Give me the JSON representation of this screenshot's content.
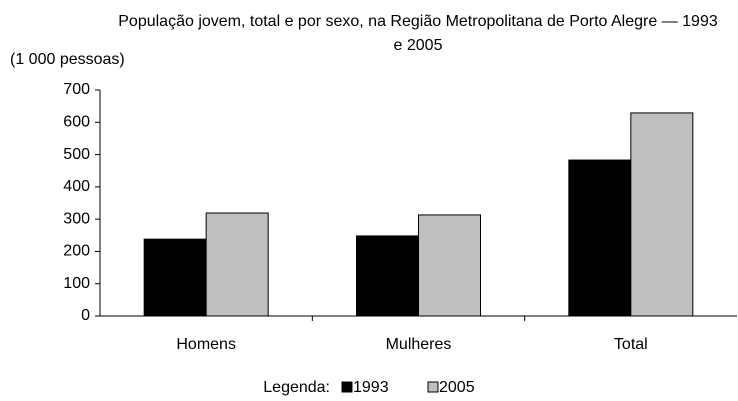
{
  "chart_data": {
    "type": "bar",
    "title": "População jovem, total e por sexo, na Região Metropolitana de Porto Alegre — 1993 e 2005",
    "y_label": "(1 000 pessoas)",
    "legend_title": "Legenda:",
    "categories": [
      "Homens",
      "Mulheres",
      "Total"
    ],
    "series": [
      {
        "name": "1993",
        "color": "#000000",
        "values": [
          238,
          248,
          483
        ]
      },
      {
        "name": "2005",
        "color": "#c0c0c0",
        "values": [
          319,
          313,
          629
        ]
      }
    ],
    "ylim": [
      0,
      700
    ],
    "yticks": [
      0,
      100,
      200,
      300,
      400,
      500,
      600,
      700
    ],
    "grid": false
  }
}
